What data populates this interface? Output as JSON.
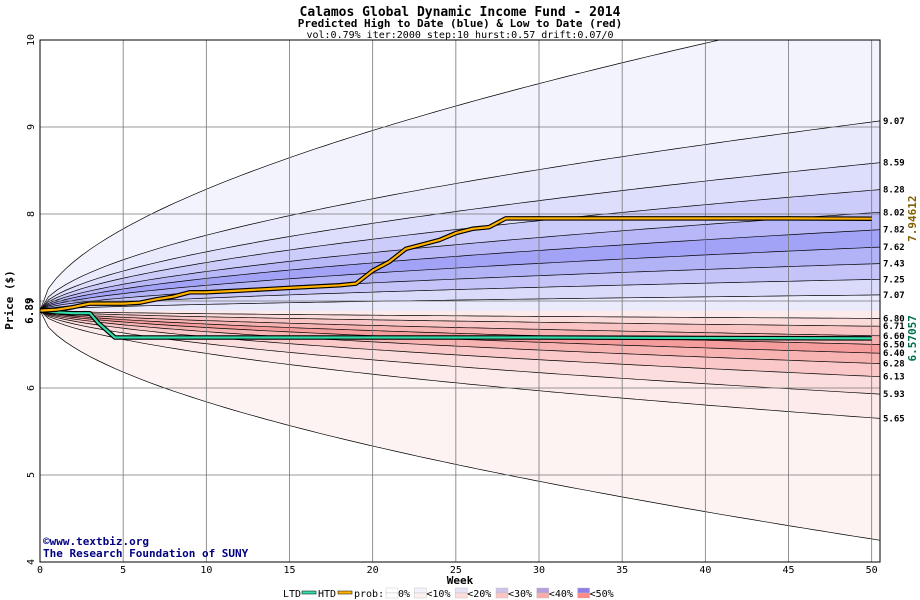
{
  "chart_data": {
    "type": "area",
    "title": "Calamos Global Dynamic Income Fund - 2014",
    "subtitle": "Predicted High to Date (blue) &  Low to Date (red)",
    "params": "vol:0.79% iter:2000 step:10 hurst:0.57 drift:0.07/0",
    "xlabel": "Week",
    "ylabel": "Price ($)",
    "xlim": [
      0,
      50.5
    ],
    "ylim": [
      4,
      10
    ],
    "x_ticks": [
      0,
      5,
      10,
      15,
      20,
      25,
      30,
      35,
      40,
      45,
      50
    ],
    "y_ticks": [
      4,
      5,
      6,
      7,
      8,
      9,
      10
    ],
    "start_price": "6.89",
    "start_price_value": 6.89,
    "grid": true,
    "colors": {
      "blue_fill": "#5555ee",
      "red_fill": "#ee5555",
      "htd_line": "#ffb300",
      "ltd_line": "#33ddaa",
      "green_label": "#007050",
      "gold_label": "#806000",
      "title_navy": "#000080"
    },
    "high_quantiles_end": [
      9.07,
      8.59,
      8.28,
      8.02,
      7.82,
      7.62,
      7.43,
      7.25,
      7.07
    ],
    "high_quantile_labels": [
      "9.07",
      "8.59",
      "8.28",
      "8.02",
      "7.82",
      "7.62",
      "7.43",
      "7.25",
      "7.07"
    ],
    "low_quantiles_end": [
      6.8,
      6.71,
      6.6,
      6.5,
      6.4,
      6.28,
      6.13,
      5.93,
      5.65
    ],
    "low_quantile_labels": [
      "6.80",
      "6.71",
      "6.60",
      "6.50",
      "6.40",
      "6.28",
      "6.13",
      "5.93",
      "5.65"
    ],
    "max_envelope_end": 10.4,
    "min_envelope_end": 4.25,
    "htd_value": "7.94612",
    "ltd_value": "6.57057",
    "htd_series": {
      "x": [
        0,
        1,
        2,
        3,
        4,
        5,
        6,
        7,
        8,
        9,
        10,
        12,
        15,
        18,
        19,
        20,
        21,
        22,
        23,
        24,
        25,
        26,
        27,
        28,
        30,
        35,
        40,
        45,
        50
      ],
      "y": [
        6.89,
        6.9,
        6.93,
        6.97,
        6.97,
        6.97,
        6.98,
        7.02,
        7.05,
        7.1,
        7.1,
        7.12,
        7.15,
        7.18,
        7.2,
        7.35,
        7.45,
        7.6,
        7.65,
        7.7,
        7.78,
        7.83,
        7.85,
        7.95,
        7.95,
        7.95,
        7.95,
        7.95,
        7.94612
      ]
    },
    "ltd_series": {
      "x": [
        0,
        1,
        2,
        3,
        3.5,
        4.5,
        5,
        10,
        15,
        20,
        30,
        40,
        50
      ],
      "y": [
        6.89,
        6.87,
        6.86,
        6.86,
        6.75,
        6.58,
        6.58,
        6.58,
        6.58,
        6.58,
        6.58,
        6.575,
        6.57057
      ]
    },
    "legend": {
      "ltd": "LTD",
      "htd": "HTD",
      "prob_prefix": "prob:",
      "items": [
        "0%",
        "<10%",
        "<20%",
        "<30%",
        "<40%",
        "<50%"
      ]
    }
  },
  "credits": {
    "url": "©www.textbiz.org",
    "org": "The Research Foundation of SUNY"
  }
}
